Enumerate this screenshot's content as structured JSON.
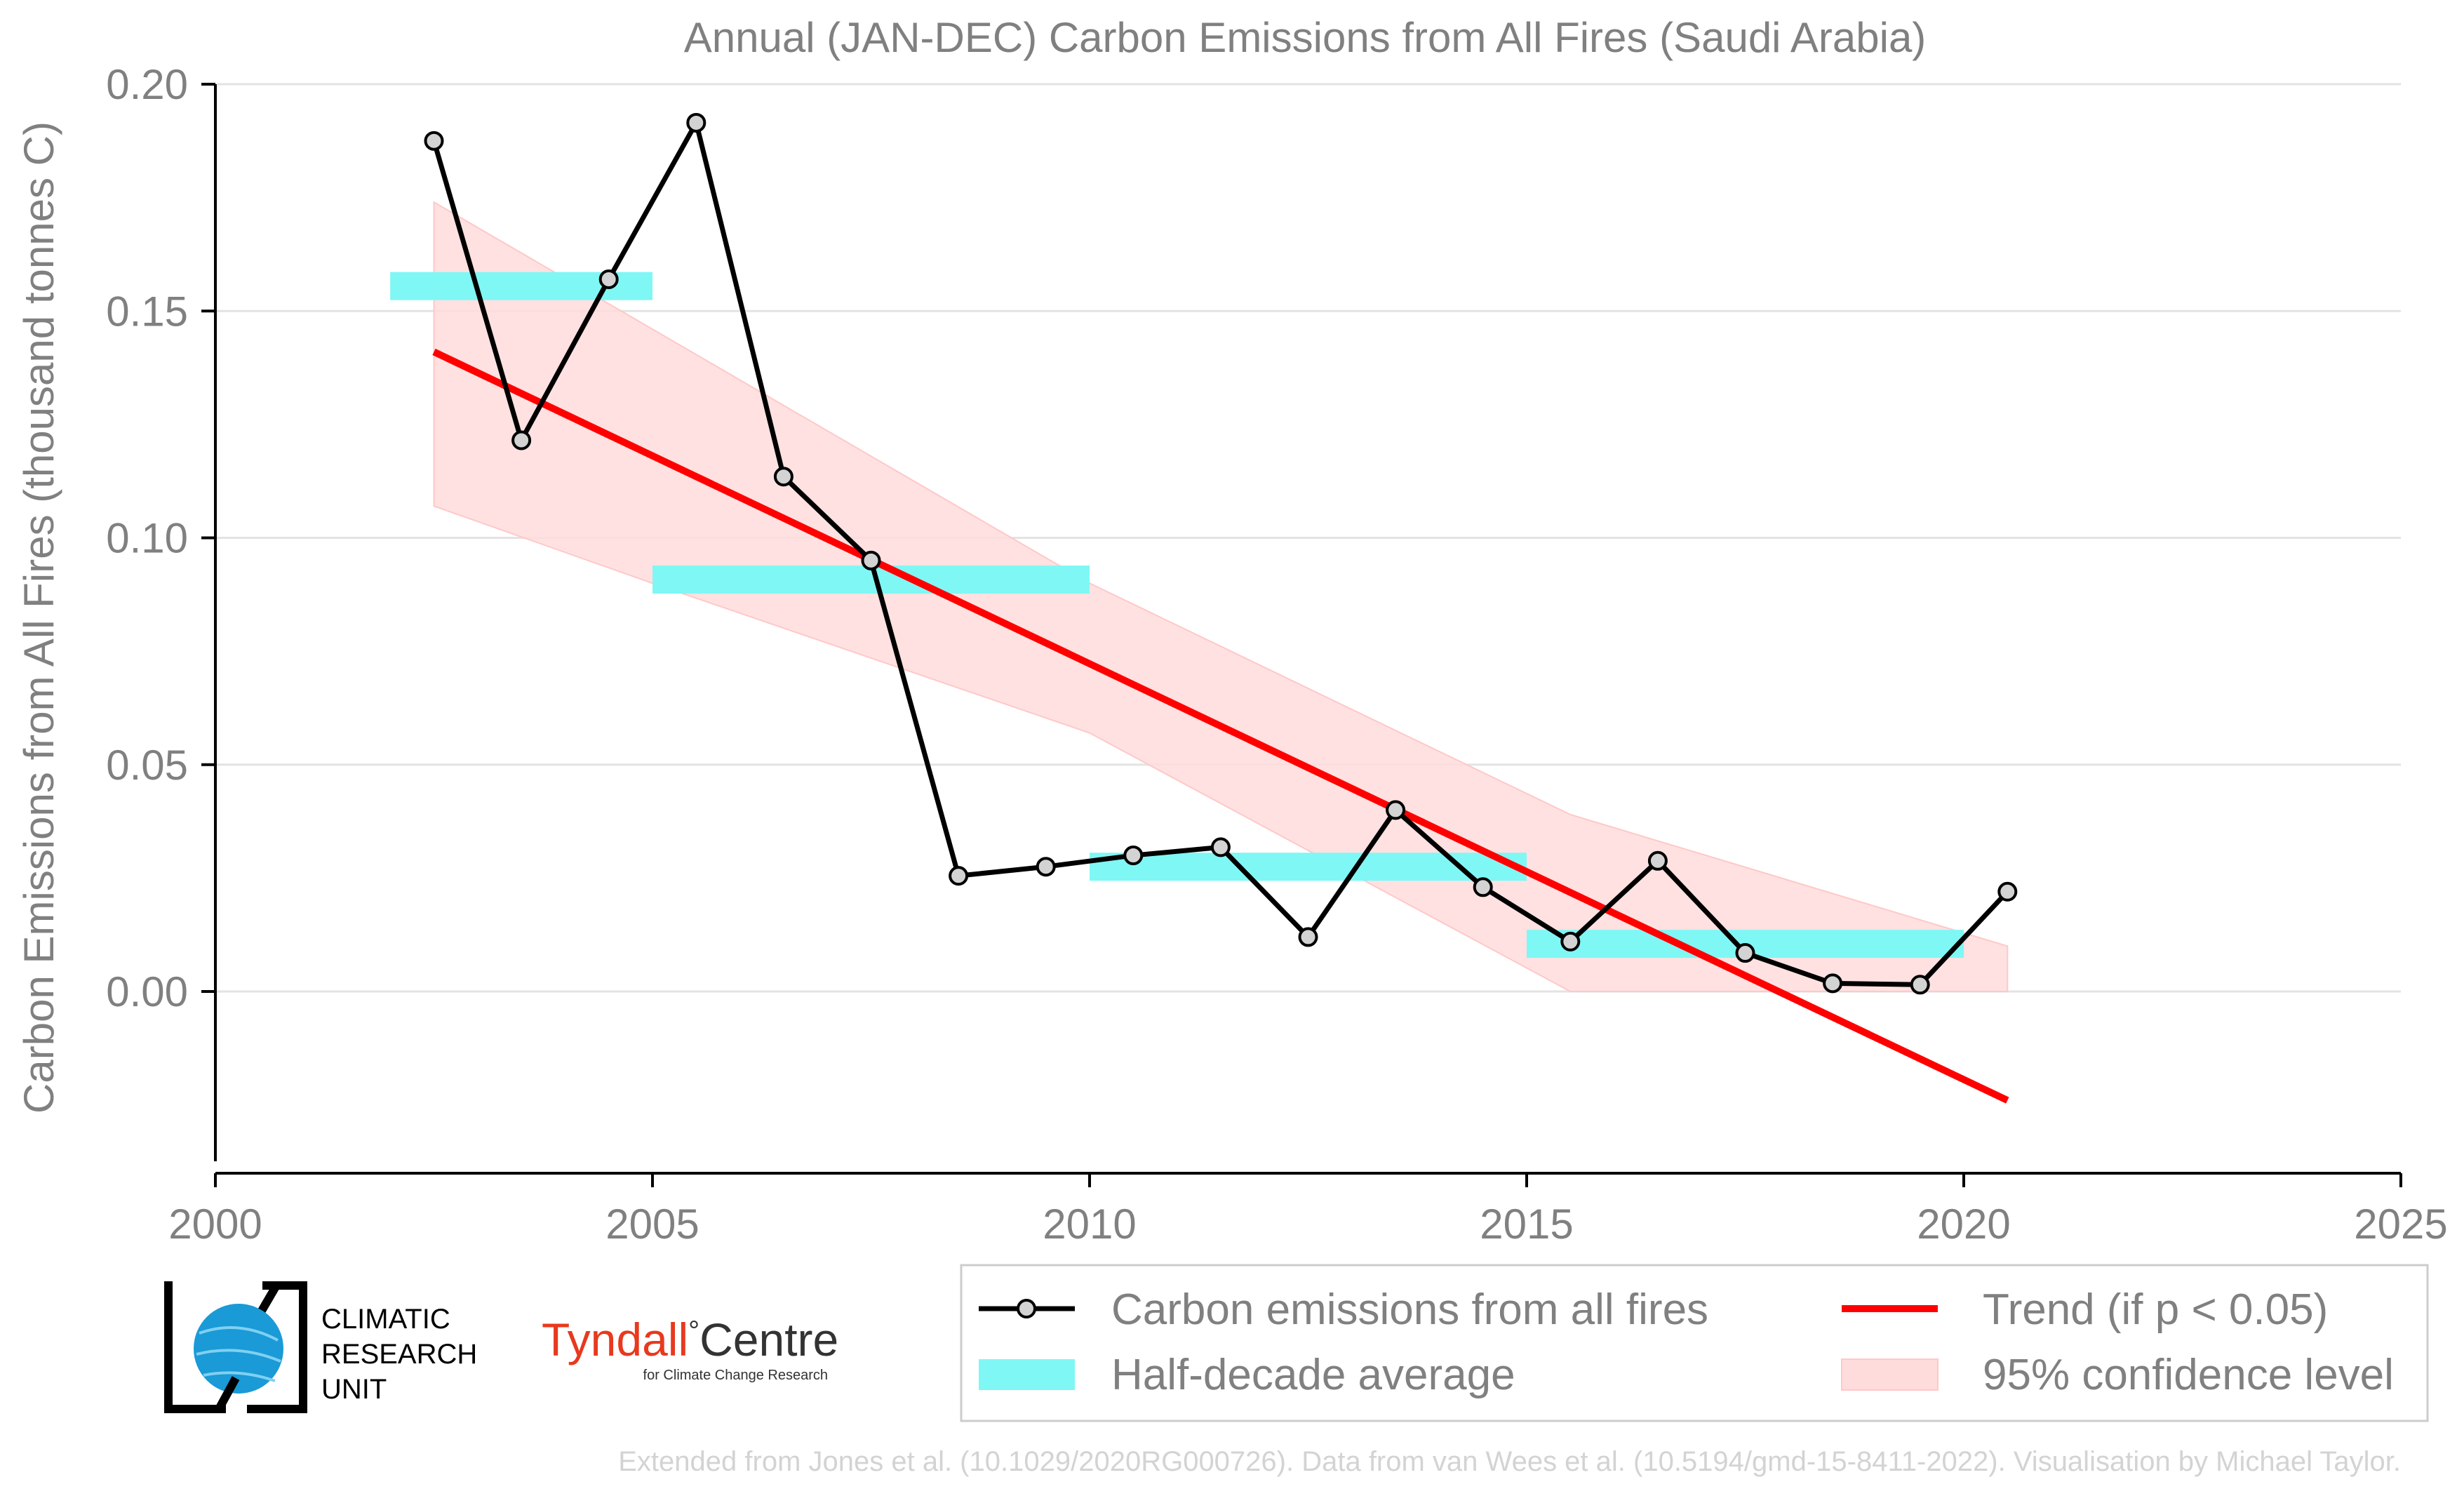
{
  "chart_data": {
    "type": "line",
    "title": "Annual (JAN-DEC) Carbon Emissions from All Fires (Saudi Arabia)",
    "xlabel": "",
    "ylabel": "Carbon Emissions from All Fires (thousand tonnes C)",
    "xlim": [
      2000,
      2025
    ],
    "ylim": [
      -0.04,
      0.2
    ],
    "x_ticks": [
      2000,
      2005,
      2010,
      2015,
      2020,
      2025
    ],
    "y_ticks": [
      0.0,
      0.05,
      0.1,
      0.15,
      0.2
    ],
    "x_tick_labels": [
      "2000",
      "2005",
      "2010",
      "2015",
      "2020",
      "2025"
    ],
    "y_tick_labels": [
      "0.00",
      "0.05",
      "0.10",
      "0.15",
      "0.20"
    ],
    "grid": "horizontal",
    "legend_position": "bottom-right, outside plot",
    "series": [
      {
        "name": "Carbon emissions from all fires",
        "type": "line-markers",
        "color": "#000000",
        "marker_fill": "#d3d3d3",
        "x": [
          2002.5,
          2003.5,
          2004.5,
          2005.5,
          2006.5,
          2007.5,
          2008.5,
          2009.5,
          2010.5,
          2011.5,
          2012.5,
          2013.5,
          2014.5,
          2015.5,
          2016.5,
          2017.5,
          2018.5,
          2019.5,
          2020.5
        ],
        "y": [
          0.1875,
          0.1215,
          0.157,
          0.1915,
          0.1135,
          0.095,
          0.0255,
          0.0275,
          0.03,
          0.0318,
          0.012,
          0.04,
          0.023,
          0.011,
          0.0288,
          0.0085,
          0.0018,
          0.0015,
          0.022
        ]
      },
      {
        "name": "Half-decade average",
        "type": "step-bars",
        "color": "#7ff7f5",
        "segments": [
          {
            "x0": 2002,
            "x1": 2005,
            "y": 0.1555
          },
          {
            "x0": 2005,
            "x1": 2010,
            "y": 0.0908
          },
          {
            "x0": 2010,
            "x1": 2015,
            "y": 0.0275
          },
          {
            "x0": 2015,
            "x1": 2020,
            "y": 0.0105
          }
        ]
      },
      {
        "name": "Trend (if p < 0.05)",
        "type": "line",
        "color": "#ff0000",
        "x": [
          2002.5,
          2020.5
        ],
        "y": [
          0.141,
          -0.024
        ]
      },
      {
        "name": "95% confidence level",
        "type": "band",
        "color": "#ffdcdc",
        "x": [
          2002.5,
          2005,
          2010,
          2015.5,
          2020.5
        ],
        "upper": [
          0.174,
          0.146,
          0.09,
          0.039,
          0.01
        ],
        "lower": [
          0.107,
          0.09,
          0.057,
          0.0,
          0.0
        ]
      }
    ]
  },
  "legend": {
    "items": [
      {
        "label": "Carbon emissions from all fires",
        "kind": "line-marker"
      },
      {
        "label": "Trend (if p < 0.05)",
        "kind": "line"
      },
      {
        "label": "Half-decade average",
        "kind": "bar"
      },
      {
        "label": "95% confidence level",
        "kind": "band"
      }
    ]
  },
  "logos": {
    "cru": {
      "line1": "CLIMATIC",
      "line2": "RESEARCH",
      "line3": "UNIT"
    },
    "tyndall": {
      "name_part1": "Tyndall",
      "degree": "°",
      "name_part2": "Centre",
      "subtitle": "for Climate Change Research",
      "color": "#e8391e"
    }
  },
  "credit": "Extended from Jones et al. (10.1029/2020RG000726). Data from van Wees et al. (10.5194/gmd-15-8411-2022). Visualisation by Michael Taylor."
}
